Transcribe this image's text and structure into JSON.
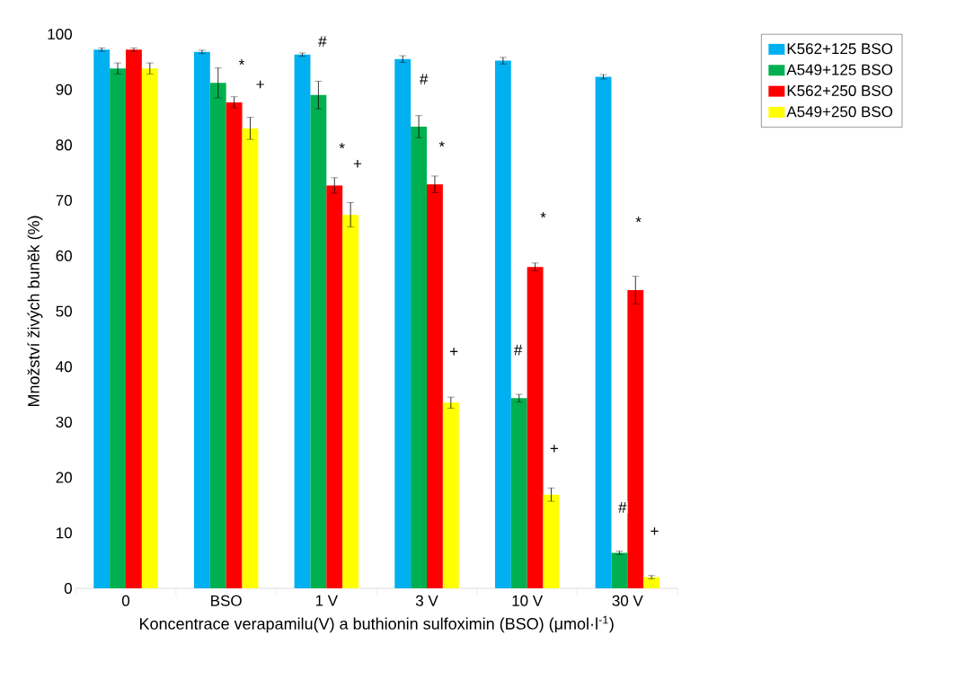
{
  "chart_data": {
    "type": "bar",
    "xlabel": "Koncentrace verapamilu(V) a buthionin sulfoximin (BSO) (μmol·l$^{-1}$)",
    "ylabel": "Množství živých buněk (%)",
    "categories": [
      "0",
      "BSO",
      "1 V",
      "3 V",
      "10 V",
      "30 V"
    ],
    "series": [
      {
        "name": "K562+125 BSO",
        "color": "#00b0f0",
        "values": [
          97.2,
          96.8,
          96.3,
          95.5,
          95.2,
          92.3
        ],
        "errors": [
          0.3,
          0.3,
          0.3,
          0.6,
          0.6,
          0.4
        ]
      },
      {
        "name": "A549+125 BSO",
        "color": "#00b050",
        "values": [
          93.8,
          91.2,
          89.0,
          83.3,
          34.3,
          6.4
        ],
        "errors": [
          1.0,
          2.7,
          2.5,
          2.0,
          0.7,
          0.3
        ]
      },
      {
        "name": "K562+250 BSO",
        "color": "#ff0000",
        "values": [
          97.2,
          87.7,
          72.7,
          72.9,
          58.0,
          53.8
        ],
        "errors": [
          0.3,
          1.0,
          1.4,
          1.5,
          0.7,
          2.5
        ]
      },
      {
        "name": "A549+250 BSO",
        "color": "#ffff00",
        "values": [
          93.8,
          83.0,
          67.4,
          33.5,
          16.9,
          2.0
        ],
        "errors": [
          1.0,
          2.0,
          2.2,
          1.0,
          1.2,
          0.3
        ]
      }
    ],
    "ylim": [
      0,
      100
    ],
    "yticks": [
      0,
      10,
      20,
      30,
      40,
      50,
      60,
      70,
      80,
      90,
      100
    ],
    "legend": "top right",
    "annotations": [
      "*",
      "+",
      "#",
      "*",
      "+",
      "#",
      "*",
      "+",
      "*",
      "#",
      "+",
      "*",
      "#",
      "+"
    ]
  }
}
